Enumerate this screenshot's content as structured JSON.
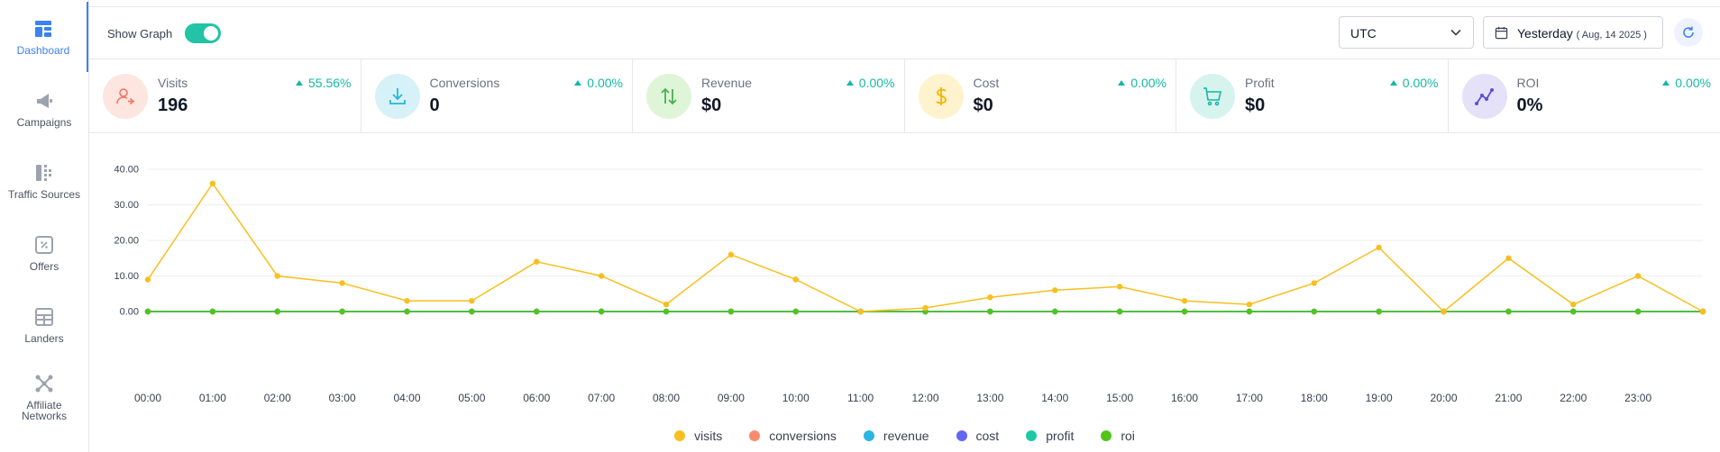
{
  "sidebar": {
    "items": [
      {
        "label": "Dashboard",
        "icon": "dashboard-icon",
        "active": true
      },
      {
        "label": "Campaigns",
        "icon": "megaphone-icon"
      },
      {
        "label": "Traffic Sources",
        "icon": "traffic-sources-icon"
      },
      {
        "label": "Offers",
        "icon": "percent-tag-icon"
      },
      {
        "label": "Landers",
        "icon": "layout-icon"
      },
      {
        "label": "Affiliate Networks",
        "icon": "network-icon"
      }
    ]
  },
  "header": {
    "show_graph_label": "Show Graph",
    "show_graph_on": true,
    "timezone": "UTC",
    "date_label": "Yesterday",
    "date_sub": "( Aug, 14 2025 )"
  },
  "metrics": [
    {
      "name": "Visits",
      "value": "196",
      "change": "55.56%",
      "icon": "visitor-icon",
      "color": "#f97362",
      "bg": "#fde5e0"
    },
    {
      "name": "Conversions",
      "value": "0",
      "change": "0.00%",
      "icon": "download-icon",
      "color": "#22b8d8",
      "bg": "#d7f1f8"
    },
    {
      "name": "Revenue",
      "value": "$0",
      "change": "0.00%",
      "icon": "arrows-up-down-icon",
      "color": "#4caf50",
      "bg": "#dff5d8"
    },
    {
      "name": "Cost",
      "value": "$0",
      "change": "0.00%",
      "icon": "dollar-icon",
      "color": "#f5b400",
      "bg": "#fff2cf"
    },
    {
      "name": "Profit",
      "value": "$0",
      "change": "0.00%",
      "icon": "cart-icon",
      "color": "#14b8a6",
      "bg": "#d6f3ee"
    },
    {
      "name": "ROI",
      "value": "0%",
      "change": "0.00%",
      "icon": "trend-icon",
      "color": "#5b4fd6",
      "bg": "#e4e1f8"
    }
  ],
  "chart_data": {
    "type": "line",
    "x": [
      "00:00",
      "01:00",
      "02:00",
      "03:00",
      "04:00",
      "05:00",
      "06:00",
      "07:00",
      "08:00",
      "09:00",
      "10:00",
      "11:00",
      "12:00",
      "13:00",
      "14:00",
      "15:00",
      "16:00",
      "17:00",
      "18:00",
      "19:00",
      "20:00",
      "21:00",
      "22:00",
      "23:00",
      ""
    ],
    "x_ticks": [
      "00:00",
      "01:00",
      "02:00",
      "03:00",
      "04:00",
      "05:00",
      "06:00",
      "07:00",
      "08:00",
      "09:00",
      "10:00",
      "11:00",
      "12:00",
      "13:00",
      "14:00",
      "15:00",
      "16:00",
      "17:00",
      "18:00",
      "19:00",
      "20:00",
      "21:00",
      "22:00",
      "23:00"
    ],
    "y_ticks": [
      "0.00",
      "10.00",
      "20.00",
      "30.00",
      "40.00"
    ],
    "ylim": [
      0,
      40
    ],
    "grid": true,
    "legend_position": "bottom",
    "series": [
      {
        "name": "visits",
        "color": "#f9bf1e",
        "values": [
          9,
          36,
          10,
          8,
          3,
          3,
          14,
          10,
          2,
          16,
          9,
          0,
          1,
          4,
          6,
          7,
          3,
          2,
          8,
          18,
          0,
          15,
          2,
          10,
          0
        ]
      },
      {
        "name": "conversions",
        "color": "#f78c6c",
        "values": [
          0,
          0,
          0,
          0,
          0,
          0,
          0,
          0,
          0,
          0,
          0,
          0,
          0,
          0,
          0,
          0,
          0,
          0,
          0,
          0,
          0,
          0,
          0,
          0,
          0
        ]
      },
      {
        "name": "revenue",
        "color": "#29b6e0",
        "values": [
          0,
          0,
          0,
          0,
          0,
          0,
          0,
          0,
          0,
          0,
          0,
          0,
          0,
          0,
          0,
          0,
          0,
          0,
          0,
          0,
          0,
          0,
          0,
          0,
          0
        ]
      },
      {
        "name": "cost",
        "color": "#6366f1",
        "values": [
          0,
          0,
          0,
          0,
          0,
          0,
          0,
          0,
          0,
          0,
          0,
          0,
          0,
          0,
          0,
          0,
          0,
          0,
          0,
          0,
          0,
          0,
          0,
          0,
          0
        ]
      },
      {
        "name": "profit",
        "color": "#1ec8a5",
        "values": [
          0,
          0,
          0,
          0,
          0,
          0,
          0,
          0,
          0,
          0,
          0,
          0,
          0,
          0,
          0,
          0,
          0,
          0,
          0,
          0,
          0,
          0,
          0,
          0,
          0
        ]
      },
      {
        "name": "roi",
        "color": "#52c41a",
        "values": [
          0,
          0,
          0,
          0,
          0,
          0,
          0,
          0,
          0,
          0,
          0,
          0,
          0,
          0,
          0,
          0,
          0,
          0,
          0,
          0,
          0,
          0,
          0,
          0,
          0
        ]
      }
    ]
  }
}
